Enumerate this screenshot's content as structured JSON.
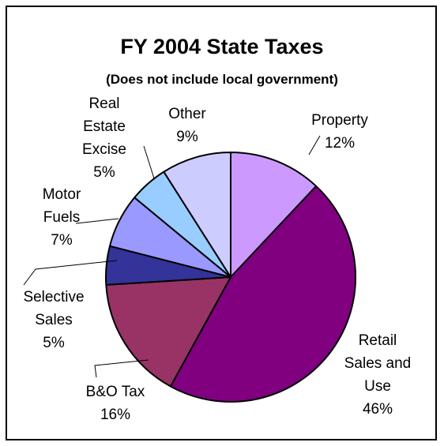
{
  "chart_data": {
    "type": "pie",
    "title": "FY 2004 State Taxes",
    "subtitle": "(Does not include local government)",
    "start_angle_deg": 0,
    "direction": "clockwise",
    "slices": [
      {
        "name": "Property",
        "label_lines": [
          "Property"
        ],
        "percent_label": "12%",
        "value": 12,
        "color": "#cc99ff"
      },
      {
        "name": "Retail Sales and Use",
        "label_lines": [
          "Retail",
          "Sales and",
          "Use"
        ],
        "percent_label": "46%",
        "value": 46,
        "color": "#800080"
      },
      {
        "name": "B&O Tax",
        "label_lines": [
          "B&O Tax"
        ],
        "percent_label": "16%",
        "value": 16,
        "color": "#993366"
      },
      {
        "name": "Selective Sales",
        "label_lines": [
          "Selective",
          "Sales"
        ],
        "percent_label": "5%",
        "value": 5,
        "color": "#333399"
      },
      {
        "name": "Motor Fuels",
        "label_lines": [
          "Motor",
          "Fuels"
        ],
        "percent_label": "7%",
        "value": 7,
        "color": "#9999ff"
      },
      {
        "name": "Real Estate Excise",
        "label_lines": [
          "Real",
          "Estate",
          "Excise"
        ],
        "percent_label": "5%",
        "value": 5,
        "color": "#99ccff"
      },
      {
        "name": "Other",
        "label_lines": [
          "Other"
        ],
        "percent_label": "9%",
        "value": 9,
        "color": "#ccccff"
      }
    ]
  }
}
